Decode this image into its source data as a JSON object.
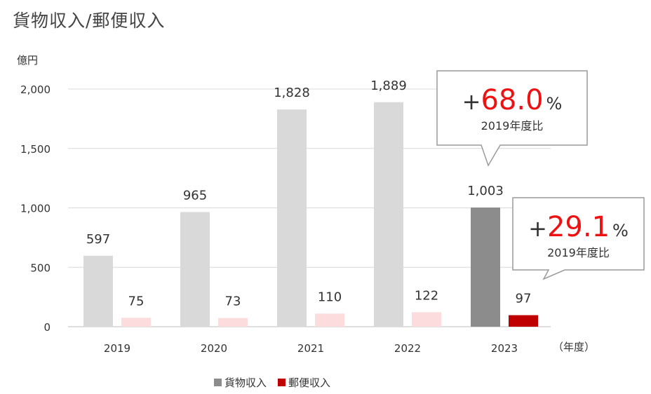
{
  "title": "貨物収入/郵便収入",
  "chart_data": {
    "type": "bar",
    "title": "貨物収入/郵便収入",
    "ylabel": "億円",
    "xlabel": "（年度）",
    "categories": [
      "2019",
      "2020",
      "2021",
      "2022",
      "2023"
    ],
    "ylim": [
      0,
      2000
    ],
    "yticks": [
      "0",
      "500",
      "1,000",
      "1,500",
      "2,000"
    ],
    "grid": true,
    "series": [
      {
        "name": "貨物収入",
        "values": [
          597,
          965,
          1828,
          1889,
          1003
        ],
        "labels": [
          "597",
          "965",
          "1,828",
          "1,889",
          "1,003"
        ],
        "colors": [
          "#d9d9d9",
          "#d9d9d9",
          "#d9d9d9",
          "#d9d9d9",
          "#8c8c8c"
        ]
      },
      {
        "name": "郵便収入",
        "values": [
          75,
          73,
          110,
          122,
          97
        ],
        "labels": [
          "75",
          "73",
          "110",
          "122",
          "97"
        ],
        "colors": [
          "#fcdcdc",
          "#fcdcdc",
          "#fcdcdc",
          "#fcdcdc",
          "#c00000"
        ]
      }
    ],
    "legend": {
      "placement": "bottom"
    },
    "legend_colors": [
      "#8c8c8c",
      "#c00000"
    ],
    "callouts": [
      {
        "plus": "+",
        "value": "68.0",
        "unit": "%",
        "sub": "2019年度比"
      },
      {
        "plus": "+",
        "value": "29.1",
        "unit": "%",
        "sub": "2019年度比"
      }
    ],
    "accent_color": "#ee1111"
  }
}
